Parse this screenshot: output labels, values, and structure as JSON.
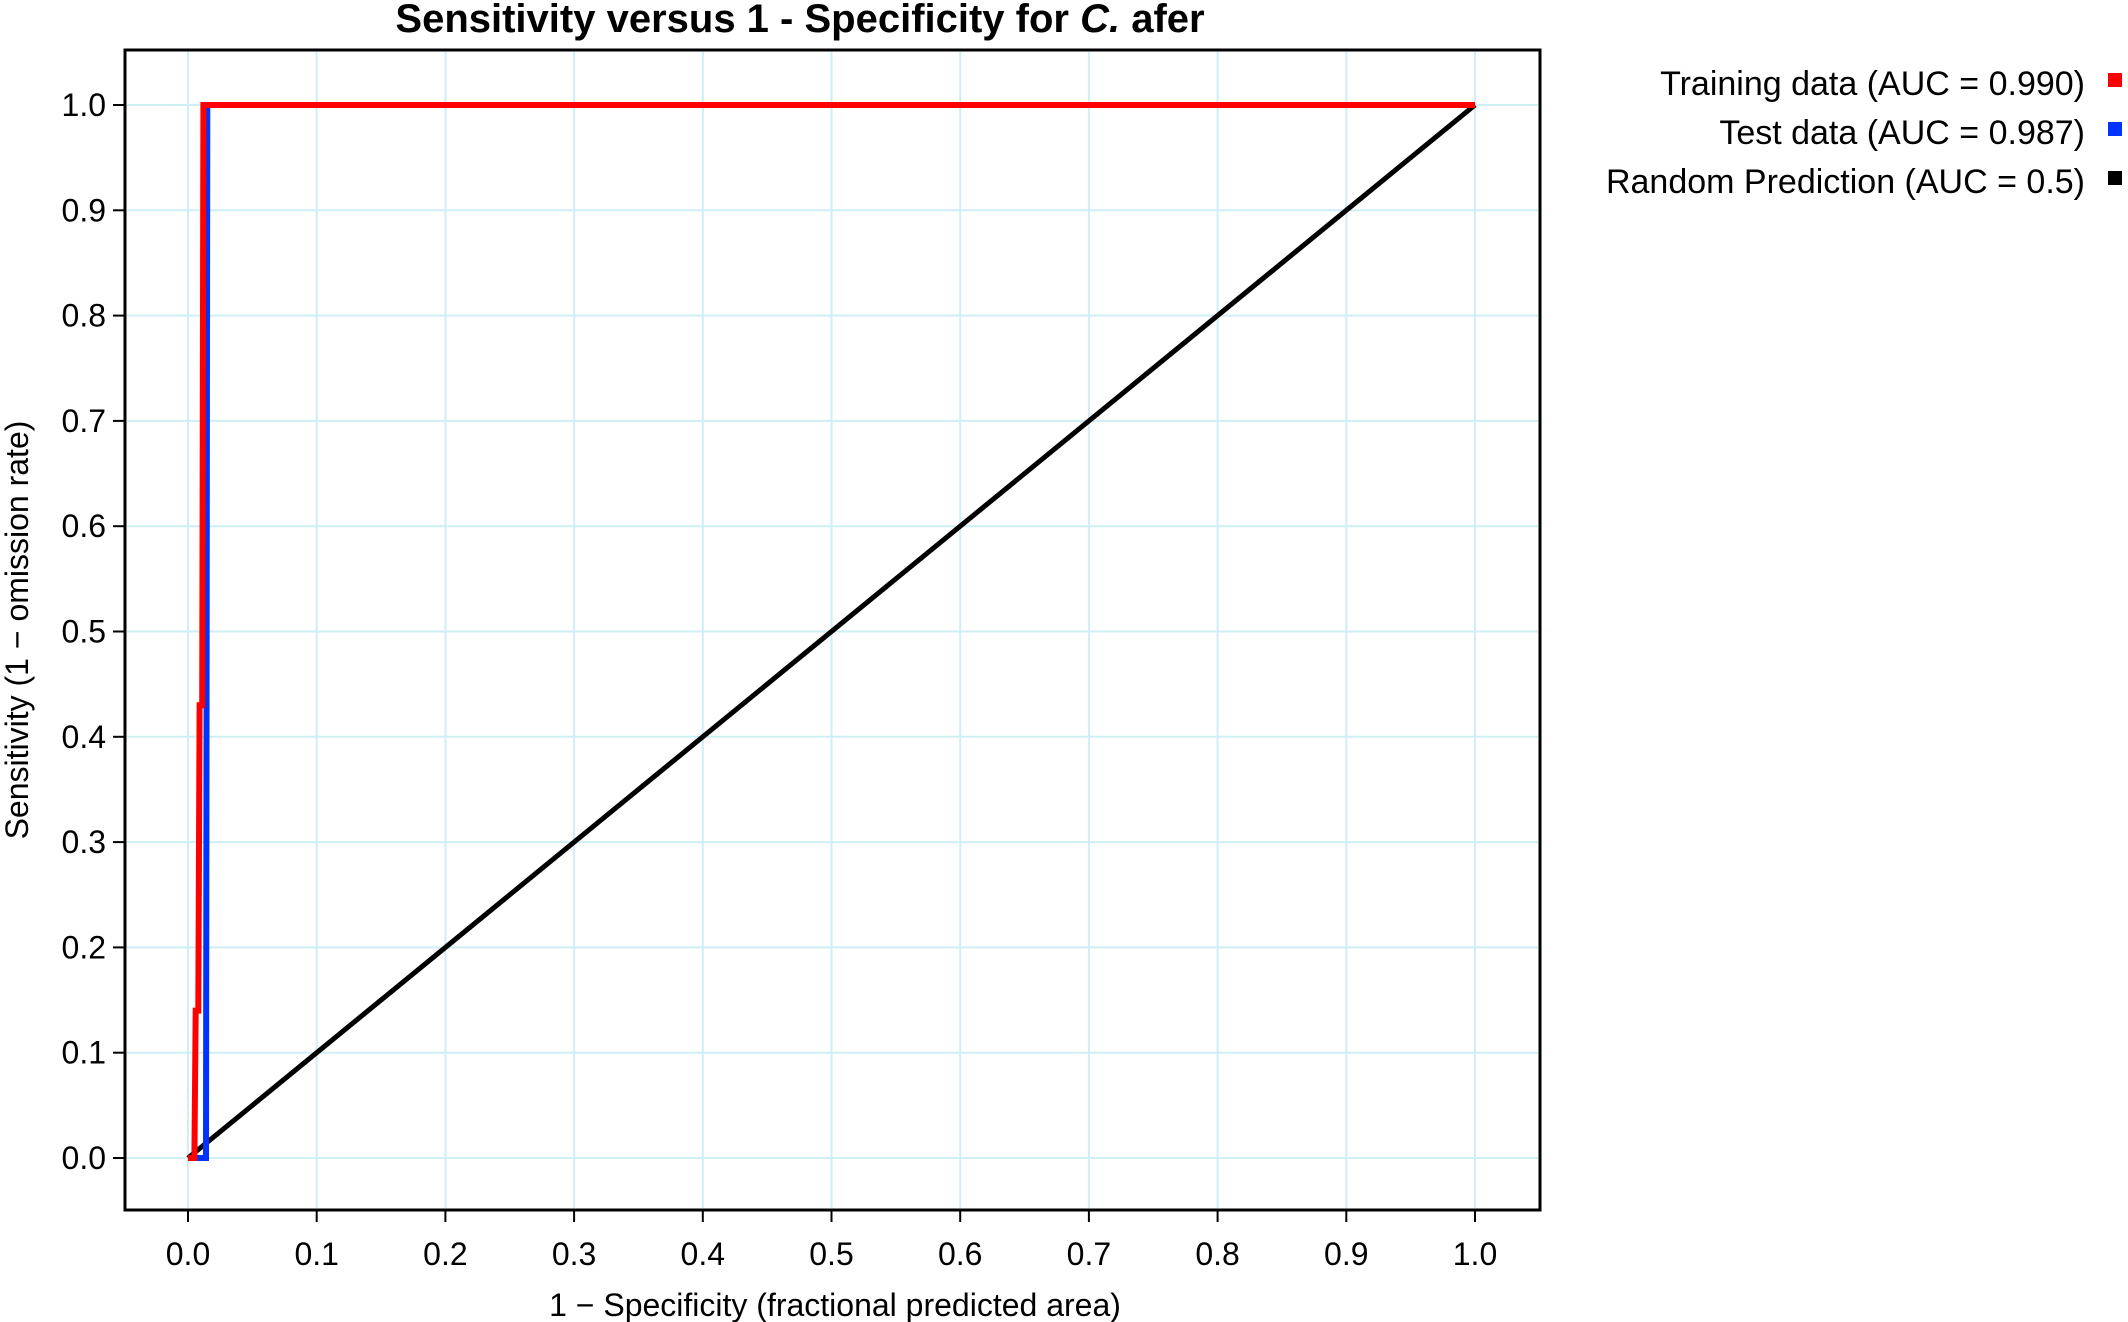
{
  "chart_data": {
    "type": "line",
    "title": {
      "prefix": "Sensitivity versus 1 - Specificity for ",
      "species": "C.",
      "suffix": " afer"
    },
    "xlabel": "1 − Specificity (fractional predicted area)",
    "ylabel": "Sensitivity (1 − omission rate)",
    "xlim": [
      0,
      1
    ],
    "ylim": [
      0,
      1
    ],
    "xticks": [
      "0.0",
      "0.1",
      "0.2",
      "0.3",
      "0.4",
      "0.5",
      "0.6",
      "0.7",
      "0.8",
      "0.9",
      "1.0"
    ],
    "yticks": [
      "0.0",
      "0.1",
      "0.2",
      "0.3",
      "0.4",
      "0.5",
      "0.6",
      "0.7",
      "0.8",
      "0.9",
      "1.0"
    ],
    "grid": true,
    "legend_position": "top-right, outside plot",
    "series": [
      {
        "name": "Training data (AUC = 0.990)",
        "color": "#ff0000",
        "points": [
          [
            0,
            0
          ],
          [
            0.005,
            0
          ],
          [
            0.006,
            0.14
          ],
          [
            0.008,
            0.14
          ],
          [
            0.009,
            0.43
          ],
          [
            0.011,
            0.43
          ],
          [
            0.012,
            1.0
          ],
          [
            1.0,
            1.0
          ]
        ]
      },
      {
        "name": "Test data (AUC = 0.987)",
        "color": "#0033ff",
        "points": [
          [
            0,
            0
          ],
          [
            0.014,
            0
          ],
          [
            0.015,
            1.0
          ],
          [
            1.0,
            1.0
          ]
        ]
      },
      {
        "name": "Random Prediction (AUC = 0.5)",
        "color": "#000000",
        "points": [
          [
            0,
            0
          ],
          [
            1.0,
            1.0
          ]
        ]
      }
    ]
  }
}
